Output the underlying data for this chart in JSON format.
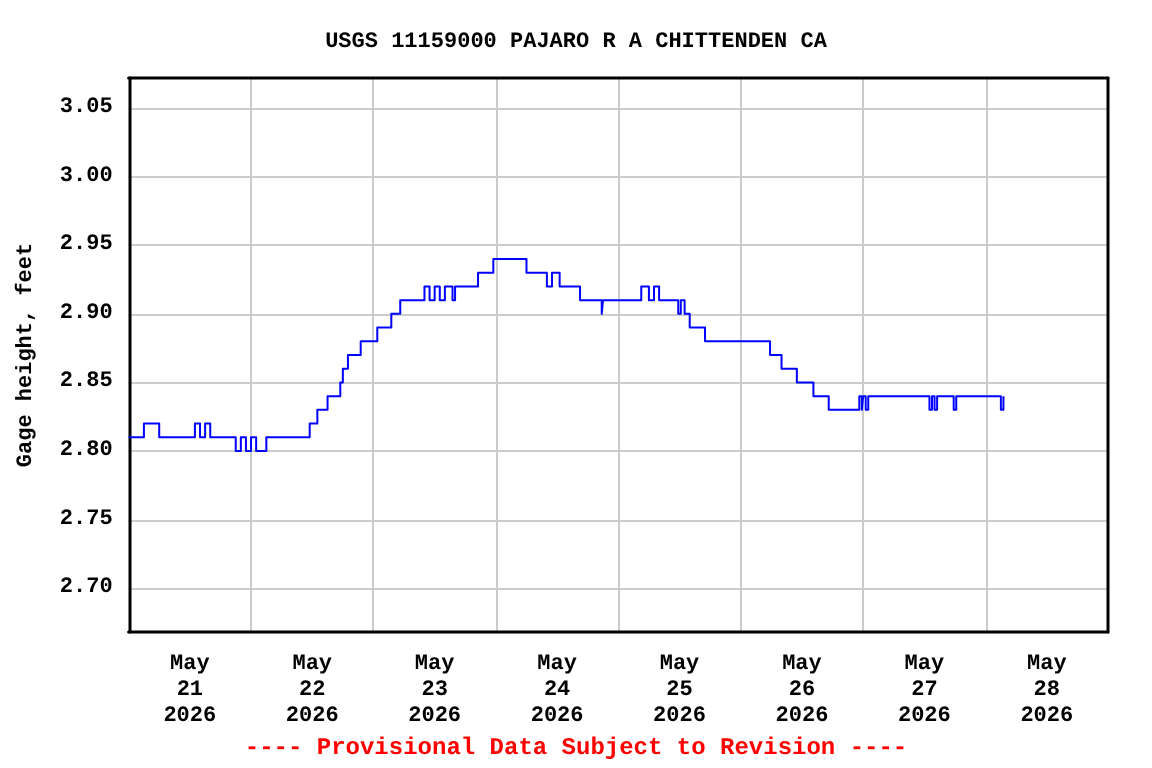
{
  "chart_data": {
    "type": "step",
    "title": "USGS 11159000 PAJARO R A CHITTENDEN CA",
    "ylabel": "Gage height, feet",
    "annotations": [
      "---- Provisional Data Subject to Revision ----"
    ],
    "x": [
      "2026-05-21T00:00",
      "2026-05-21T03:00",
      "2026-05-21T06:00",
      "2026-05-21T13:00",
      "2026-05-21T14:00",
      "2026-05-21T15:00",
      "2026-05-21T16:00",
      "2026-05-21T21:00",
      "2026-05-21T22:00",
      "2026-05-21T23:00",
      "2026-05-22T00:00",
      "2026-05-22T01:00",
      "2026-05-22T03:00",
      "2026-05-22T11:30",
      "2026-05-22T13:00",
      "2026-05-22T15:00",
      "2026-05-22T17:30",
      "2026-05-22T18:00",
      "2026-05-22T19:00",
      "2026-05-22T21:30",
      "2026-05-23T00:45",
      "2026-05-23T03:30",
      "2026-05-23T05:15",
      "2026-05-23T10:00",
      "2026-05-23T11:00",
      "2026-05-23T12:00",
      "2026-05-23T13:00",
      "2026-05-23T14:00",
      "2026-05-23T15:30",
      "2026-05-23T16:00",
      "2026-05-23T20:30",
      "2026-05-23T23:30",
      "2026-05-24T06:00",
      "2026-05-24T10:00",
      "2026-05-24T11:00",
      "2026-05-24T12:30",
      "2026-05-24T16:30",
      "2026-05-24T20:45",
      "2026-05-24T21:00",
      "2026-05-25T04:30",
      "2026-05-25T06:00",
      "2026-05-25T07:00",
      "2026-05-25T08:00",
      "2026-05-25T11:45",
      "2026-05-25T12:15",
      "2026-05-25T13:00",
      "2026-05-25T14:00",
      "2026-05-25T17:00",
      "2026-05-26T05:45",
      "2026-05-26T08:00",
      "2026-05-26T11:00",
      "2026-05-26T14:15",
      "2026-05-26T17:15",
      "2026-05-26T23:15",
      "2026-05-26T23:45",
      "2026-05-27T00:00",
      "2026-05-27T00:30",
      "2026-05-27T01:00",
      "2026-05-27T13:00",
      "2026-05-27T13:30",
      "2026-05-27T14:00",
      "2026-05-27T14:30",
      "2026-05-27T17:45",
      "2026-05-27T18:15",
      "2026-05-28T03:00",
      "2026-05-28T03:30"
    ],
    "series": [
      {
        "color": "#0000ff",
        "values": [
          2.81,
          2.82,
          2.81,
          2.82,
          2.81,
          2.82,
          2.81,
          2.8,
          2.81,
          2.8,
          2.81,
          2.8,
          2.81,
          2.82,
          2.83,
          2.84,
          2.85,
          2.86,
          2.87,
          2.88,
          2.89,
          2.9,
          2.91,
          2.92,
          2.91,
          2.92,
          2.91,
          2.92,
          2.91,
          2.92,
          2.93,
          2.94,
          2.93,
          2.92,
          2.93,
          2.92,
          2.91,
          2.9,
          2.91,
          2.92,
          2.91,
          2.92,
          2.91,
          2.9,
          2.91,
          2.9,
          2.89,
          2.88,
          2.87,
          2.86,
          2.85,
          2.84,
          2.83,
          2.84,
          2.83,
          2.84,
          2.83,
          2.84,
          2.83,
          2.84,
          2.83,
          2.84,
          2.83,
          2.84,
          2.83,
          2.84
        ]
      }
    ],
    "xlim": [
      "2026-05-21T00:00",
      "2026-05-29T00:00"
    ],
    "xticks": [
      {
        "value": "2026-05-21T12:00",
        "label": "May\n21\n2026"
      },
      {
        "value": "2026-05-22T00:00",
        "label": null
      },
      {
        "value": "2026-05-22T12:00",
        "label": "May\n22\n2026"
      },
      {
        "value": "2026-05-23T00:00",
        "label": null
      },
      {
        "value": "2026-05-23T12:00",
        "label": "May\n23\n2026"
      },
      {
        "value": "2026-05-24T00:00",
        "label": null
      },
      {
        "value": "2026-05-24T12:00",
        "label": "May\n24\n2026"
      },
      {
        "value": "2026-05-25T00:00",
        "label": null
      },
      {
        "value": "2026-05-25T12:00",
        "label": "May\n25\n2026"
      },
      {
        "value": "2026-05-26T00:00",
        "label": null
      },
      {
        "value": "2026-05-26T12:00",
        "label": "May\n26\n2026"
      },
      {
        "value": "2026-05-27T00:00",
        "label": null
      },
      {
        "value": "2026-05-27T12:00",
        "label": "May\n27\n2026"
      },
      {
        "value": "2026-05-28T00:00",
        "label": null
      },
      {
        "value": "2026-05-28T12:00",
        "label": "May\n28\n2026"
      }
    ],
    "ylim": [
      2.668,
      3.072
    ],
    "yticks": [
      {
        "value": 2.7,
        "label": "2.70"
      },
      2.75,
      {
        "value": 2.8,
        "label": "2.80"
      },
      2.85,
      {
        "value": 2.9,
        "label": "2.90"
      },
      2.95,
      {
        "value": 3,
        "label": "3.00"
      },
      3.05
    ],
    "grid": true,
    "marker": "none",
    "line_style": "solid"
  }
}
